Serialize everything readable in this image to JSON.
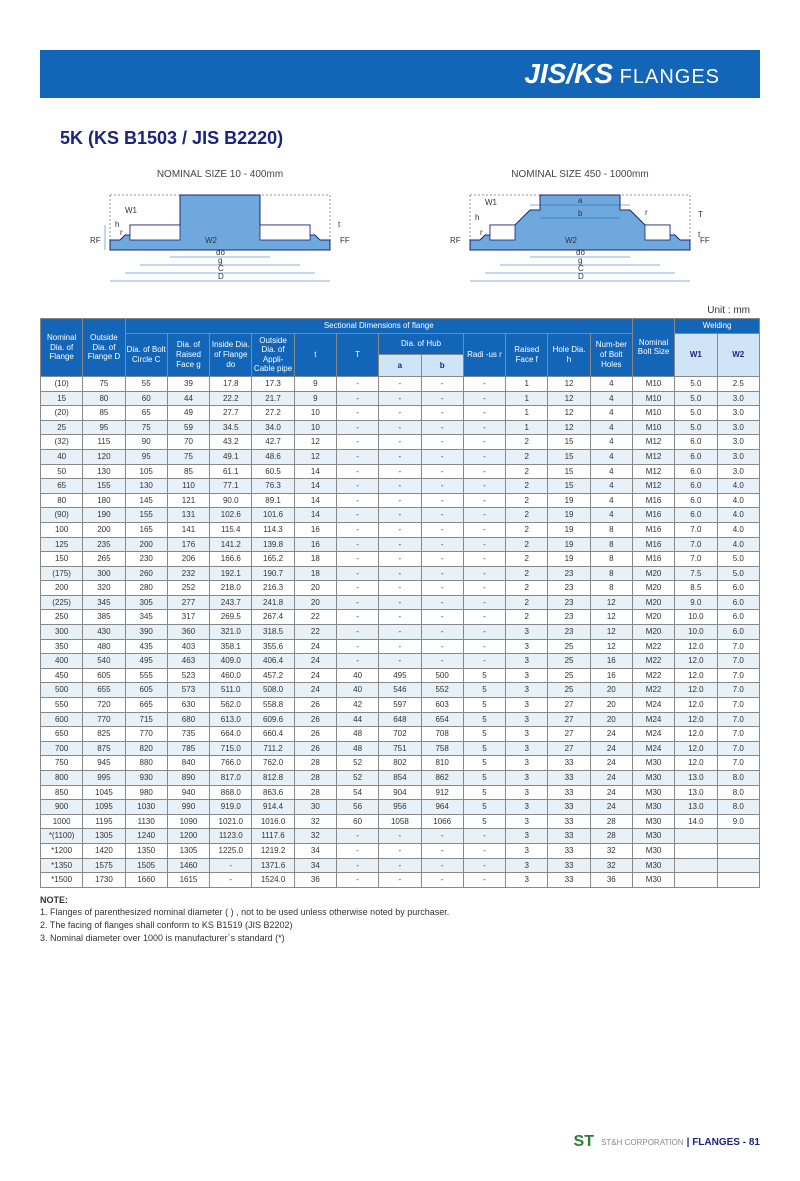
{
  "header": {
    "title_big": "JIS/KS",
    "title_small": " FLANGES"
  },
  "section_title": "5K (KS B1503 / JIS B2220)",
  "diagrams": {
    "left_label": "NOMINAL SIZE 10 - 400mm",
    "right_label": "NOMINAL SIZE 450 - 1000mm",
    "labels": {
      "W1": "W1",
      "W2": "W2",
      "h": "h",
      "r": "r",
      "t": "t",
      "T": "T",
      "do": "do",
      "g": "g",
      "C": "C",
      "D": "D",
      "RF": "RF",
      "FF": "FF",
      "a": "a",
      "b": "b"
    },
    "colors": {
      "flange_fill": "#6fa8dc",
      "outline": "#1a237e",
      "dim": "#1365b8"
    }
  },
  "unit_label": "Unit : mm",
  "table": {
    "group_header": "Sectional Dimensions of flange",
    "headers": {
      "nominal": "Nominal Dia. of Flange",
      "outsideD": "Outside Dia. of Flange D",
      "boltC": "Dia. of Bolt Circle C",
      "raisedG": "Dia. of Raised Face g",
      "insideDo": "Inside Dia. of Flange do",
      "appli": "Outside Dia. of Appli-Cable pipe",
      "t": "t",
      "T": "T",
      "diaHub": "Dia. of Hub",
      "a": "a",
      "b": "b",
      "radius": "Radi -us r",
      "raisedF": "Raised Face f",
      "holeH": "Hole Dia. h",
      "numHoles": "Num-ber of Bolt Holes",
      "boltSize": "Nominal Bolt Size",
      "welding": "Welding",
      "W1": "W1",
      "W2": "W2"
    },
    "rows": [
      [
        "(10)",
        "75",
        "55",
        "39",
        "17.8",
        "17.3",
        "9",
        "-",
        "-",
        "-",
        "-",
        "1",
        "12",
        "4",
        "M10",
        "5.0",
        "2.5"
      ],
      [
        "15",
        "80",
        "60",
        "44",
        "22.2",
        "21.7",
        "9",
        "-",
        "-",
        "-",
        "-",
        "1",
        "12",
        "4",
        "M10",
        "5.0",
        "3.0"
      ],
      [
        "(20)",
        "85",
        "65",
        "49",
        "27.7",
        "27.2",
        "10",
        "-",
        "-",
        "-",
        "-",
        "1",
        "12",
        "4",
        "M10",
        "5.0",
        "3.0"
      ],
      [
        "25",
        "95",
        "75",
        "59",
        "34.5",
        "34.0",
        "10",
        "-",
        "-",
        "-",
        "-",
        "1",
        "12",
        "4",
        "M10",
        "5.0",
        "3.0"
      ],
      [
        "(32)",
        "115",
        "90",
        "70",
        "43.2",
        "42.7",
        "12",
        "-",
        "-",
        "-",
        "-",
        "2",
        "15",
        "4",
        "M12",
        "6.0",
        "3.0"
      ],
      [
        "40",
        "120",
        "95",
        "75",
        "49.1",
        "48.6",
        "12",
        "-",
        "-",
        "-",
        "-",
        "2",
        "15",
        "4",
        "M12",
        "6.0",
        "3.0"
      ],
      [
        "50",
        "130",
        "105",
        "85",
        "61.1",
        "60.5",
        "14",
        "-",
        "-",
        "-",
        "-",
        "2",
        "15",
        "4",
        "M12",
        "6.0",
        "3.0"
      ],
      [
        "65",
        "155",
        "130",
        "110",
        "77.1",
        "76.3",
        "14",
        "-",
        "-",
        "-",
        "-",
        "2",
        "15",
        "4",
        "M12",
        "6.0",
        "4.0"
      ],
      [
        "80",
        "180",
        "145",
        "121",
        "90.0",
        "89.1",
        "14",
        "-",
        "-",
        "-",
        "-",
        "2",
        "19",
        "4",
        "M16",
        "6.0",
        "4.0"
      ],
      [
        "(90)",
        "190",
        "155",
        "131",
        "102.6",
        "101.6",
        "14",
        "-",
        "-",
        "-",
        "-",
        "2",
        "19",
        "4",
        "M16",
        "6.0",
        "4.0"
      ],
      [
        "100",
        "200",
        "165",
        "141",
        "115.4",
        "114.3",
        "16",
        "-",
        "-",
        "-",
        "-",
        "2",
        "19",
        "8",
        "M16",
        "7.0",
        "4.0"
      ],
      [
        "125",
        "235",
        "200",
        "176",
        "141.2",
        "139.8",
        "16",
        "-",
        "-",
        "-",
        "-",
        "2",
        "19",
        "8",
        "M16",
        "7.0",
        "4.0"
      ],
      [
        "150",
        "265",
        "230",
        "206",
        "166.6",
        "165.2",
        "18",
        "-",
        "-",
        "-",
        "-",
        "2",
        "19",
        "8",
        "M16",
        "7.0",
        "5.0"
      ],
      [
        "(175)",
        "300",
        "260",
        "232",
        "192.1",
        "190.7",
        "18",
        "-",
        "-",
        "-",
        "-",
        "2",
        "23",
        "8",
        "M20",
        "7.5",
        "5.0"
      ],
      [
        "200",
        "320",
        "280",
        "252",
        "218.0",
        "216.3",
        "20",
        "-",
        "-",
        "-",
        "-",
        "2",
        "23",
        "8",
        "M20",
        "8.5",
        "6.0"
      ],
      [
        "(225)",
        "345",
        "305",
        "277",
        "243.7",
        "241.8",
        "20",
        "-",
        "-",
        "-",
        "-",
        "2",
        "23",
        "12",
        "M20",
        "9.0",
        "6.0"
      ],
      [
        "250",
        "385",
        "345",
        "317",
        "269.5",
        "267.4",
        "22",
        "-",
        "-",
        "-",
        "-",
        "2",
        "23",
        "12",
        "M20",
        "10.0",
        "6.0"
      ],
      [
        "300",
        "430",
        "390",
        "360",
        "321.0",
        "318.5",
        "22",
        "-",
        "-",
        "-",
        "-",
        "3",
        "23",
        "12",
        "M20",
        "10.0",
        "6.0"
      ],
      [
        "350",
        "480",
        "435",
        "403",
        "358.1",
        "355.6",
        "24",
        "-",
        "-",
        "-",
        "-",
        "3",
        "25",
        "12",
        "M22",
        "12.0",
        "7.0"
      ],
      [
        "400",
        "540",
        "495",
        "463",
        "409.0",
        "406.4",
        "24",
        "-",
        "-",
        "-",
        "-",
        "3",
        "25",
        "16",
        "M22",
        "12.0",
        "7.0"
      ],
      [
        "450",
        "605",
        "555",
        "523",
        "460.0",
        "457.2",
        "24",
        "40",
        "495",
        "500",
        "5",
        "3",
        "25",
        "16",
        "M22",
        "12.0",
        "7.0"
      ],
      [
        "500",
        "655",
        "605",
        "573",
        "511.0",
        "508.0",
        "24",
        "40",
        "546",
        "552",
        "5",
        "3",
        "25",
        "20",
        "M22",
        "12.0",
        "7.0"
      ],
      [
        "550",
        "720",
        "665",
        "630",
        "562.0",
        "558.8",
        "26",
        "42",
        "597",
        "603",
        "5",
        "3",
        "27",
        "20",
        "M24",
        "12.0",
        "7.0"
      ],
      [
        "600",
        "770",
        "715",
        "680",
        "613.0",
        "609.6",
        "26",
        "44",
        "648",
        "654",
        "5",
        "3",
        "27",
        "20",
        "M24",
        "12.0",
        "7.0"
      ],
      [
        "650",
        "825",
        "770",
        "735",
        "664.0",
        "660.4",
        "26",
        "48",
        "702",
        "708",
        "5",
        "3",
        "27",
        "24",
        "M24",
        "12.0",
        "7.0"
      ],
      [
        "700",
        "875",
        "820",
        "785",
        "715.0",
        "711.2",
        "26",
        "48",
        "751",
        "758",
        "5",
        "3",
        "27",
        "24",
        "M24",
        "12.0",
        "7.0"
      ],
      [
        "750",
        "945",
        "880",
        "840",
        "766.0",
        "762.0",
        "28",
        "52",
        "802",
        "810",
        "5",
        "3",
        "33",
        "24",
        "M30",
        "12.0",
        "7.0"
      ],
      [
        "800",
        "995",
        "930",
        "890",
        "817.0",
        "812.8",
        "28",
        "52",
        "854",
        "862",
        "5",
        "3",
        "33",
        "24",
        "M30",
        "13.0",
        "8.0"
      ],
      [
        "850",
        "1045",
        "980",
        "940",
        "868.0",
        "863.6",
        "28",
        "54",
        "904",
        "912",
        "5",
        "3",
        "33",
        "24",
        "M30",
        "13.0",
        "8.0"
      ],
      [
        "900",
        "1095",
        "1030",
        "990",
        "919.0",
        "914.4",
        "30",
        "56",
        "956",
        "964",
        "5",
        "3",
        "33",
        "24",
        "M30",
        "13.0",
        "8.0"
      ],
      [
        "1000",
        "1195",
        "1130",
        "1090",
        "1021.0",
        "1016.0",
        "32",
        "60",
        "1058",
        "1066",
        "5",
        "3",
        "33",
        "28",
        "M30",
        "14.0",
        "9.0"
      ],
      [
        "*(1100)",
        "1305",
        "1240",
        "1200",
        "1123.0",
        "1117.6",
        "32",
        "-",
        "-",
        "-",
        "-",
        "3",
        "33",
        "28",
        "M30",
        "",
        ""
      ],
      [
        "*1200",
        "1420",
        "1350",
        "1305",
        "1225.0",
        "1219.2",
        "34",
        "-",
        "-",
        "-",
        "-",
        "3",
        "33",
        "32",
        "M30",
        "",
        ""
      ],
      [
        "*1350",
        "1575",
        "1505",
        "1460",
        "-",
        "1371.6",
        "34",
        "-",
        "-",
        "-",
        "-",
        "3",
        "33",
        "32",
        "M30",
        "",
        ""
      ],
      [
        "*1500",
        "1730",
        "1660",
        "1615",
        "-",
        "1524.0",
        "36",
        "-",
        "-",
        "-",
        "-",
        "3",
        "33",
        "36",
        "M30",
        "",
        ""
      ]
    ]
  },
  "notes": {
    "heading": "NOTE:",
    "lines": [
      "1. Flanges of parenthesized nominal diameter (  ) , not to be used unless otherwise noted by purchaser.",
      "2. The facing of flanges shall conform to KS B1519 (JIS B2202)",
      "3. Nominal diameter over 1000 is manufacturer`s standard (*)"
    ]
  },
  "footer": {
    "logo": "ST",
    "corp": "ST&H CORPORATION",
    "page": " | FLANGES - 81"
  }
}
